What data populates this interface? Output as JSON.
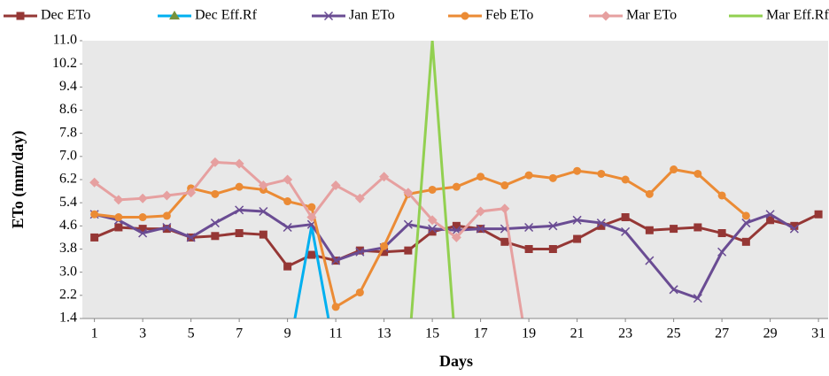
{
  "chart_data": {
    "type": "line",
    "x_label": "Days",
    "y_label": "ETo (mm/day)",
    "x": [
      1,
      2,
      3,
      4,
      5,
      6,
      7,
      8,
      9,
      10,
      11,
      12,
      13,
      14,
      15,
      16,
      17,
      18,
      19,
      20,
      21,
      22,
      23,
      24,
      25,
      26,
      27,
      28,
      29,
      30,
      31
    ],
    "xlim": [
      0.5,
      31.4
    ],
    "xticks": [
      1,
      3,
      5,
      7,
      9,
      11,
      13,
      15,
      17,
      19,
      21,
      23,
      25,
      27,
      29,
      31
    ],
    "ylim": [
      1.4,
      11
    ],
    "yticks": [
      {
        "value": 11,
        "label": "11.0"
      },
      10.2,
      9.4,
      8.6,
      7.8,
      {
        "value": 7,
        "label": "7.0"
      },
      6.2,
      5.4,
      4.6,
      3.8,
      {
        "value": 3,
        "label": "3.0"
      },
      2.2,
      1.4
    ],
    "series": [
      {
        "name": "Dec ETo",
        "color": "#953735",
        "marker": "square",
        "values": [
          4.2,
          4.55,
          4.5,
          4.5,
          4.2,
          4.25,
          4.35,
          4.3,
          3.2,
          3.6,
          3.4,
          3.75,
          3.7,
          3.75,
          4.4,
          4.6,
          4.5,
          4.05,
          3.8,
          3.8,
          4.15,
          4.6,
          4.9,
          4.45,
          4.5,
          4.55,
          4.35,
          4.05,
          4.8,
          4.6,
          5.0
        ]
      },
      {
        "name": "Dec Eff.Rf",
        "color": "#00b0f0",
        "marker": "triangle",
        "values": [
          null,
          null,
          null,
          null,
          null,
          null,
          null,
          null,
          0,
          4.6,
          0,
          null,
          null,
          null,
          null,
          null,
          null,
          null,
          null,
          null,
          null,
          null,
          null,
          null,
          null,
          null,
          null,
          null,
          null,
          null,
          null
        ]
      },
      {
        "name": "Jan ETo",
        "color": "#6a4c93",
        "marker": "cross",
        "values": [
          5.0,
          4.8,
          4.35,
          4.55,
          4.2,
          4.7,
          5.15,
          5.1,
          4.55,
          4.65,
          3.4,
          3.7,
          3.85,
          4.65,
          4.5,
          4.45,
          4.5,
          4.5,
          4.55,
          4.6,
          4.8,
          4.7,
          4.4,
          3.4,
          2.4,
          2.1,
          3.7,
          4.7,
          5.0,
          4.5,
          null
        ]
      },
      {
        "name": "Feb ETo",
        "color": "#eb8b35",
        "marker": "circle",
        "values": [
          5.0,
          4.9,
          4.9,
          4.95,
          5.9,
          5.7,
          5.95,
          5.85,
          5.45,
          5.25,
          1.8,
          2.3,
          3.9,
          5.7,
          5.85,
          5.95,
          6.3,
          6.0,
          6.35,
          6.25,
          6.5,
          6.4,
          6.2,
          5.7,
          6.55,
          6.4,
          5.65,
          4.95,
          null,
          null,
          null
        ]
      },
      {
        "name": "Mar ETo",
        "color": "#e6a0a0",
        "marker": "diamond",
        "values": [
          6.1,
          5.5,
          5.55,
          5.65,
          5.75,
          6.8,
          6.75,
          6.0,
          6.2,
          4.9,
          6.0,
          5.55,
          6.3,
          5.75,
          4.8,
          4.2,
          5.1,
          5.2,
          0,
          null,
          null,
          null,
          null,
          null,
          null,
          null,
          null,
          null,
          null,
          null,
          null
        ]
      },
      {
        "name": "Mar Eff.Rf",
        "color": "#92d050",
        "marker": "none",
        "values": [
          null,
          null,
          null,
          null,
          null,
          null,
          null,
          null,
          null,
          null,
          null,
          null,
          null,
          0,
          11,
          0,
          null,
          null,
          null,
          null,
          null,
          null,
          null,
          null,
          null,
          null,
          null,
          null,
          null,
          null,
          null
        ]
      }
    ]
  }
}
